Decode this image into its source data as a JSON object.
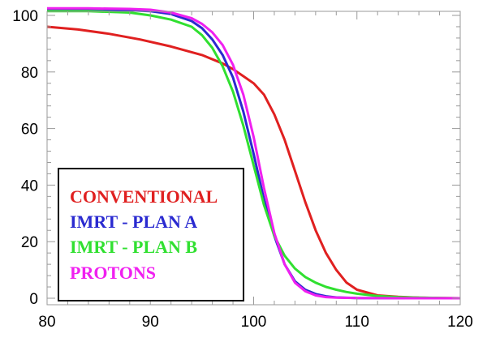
{
  "chart_data": {
    "type": "line",
    "title": "",
    "xlabel": "",
    "ylabel": "",
    "xlim": [
      80,
      120
    ],
    "ylim": [
      0,
      102
    ],
    "grid": false,
    "legend_position": "bottom-left",
    "xticks": [
      "80",
      "90",
      "100",
      "110",
      "120"
    ],
    "yticks": [
      "0",
      "20",
      "40",
      "60",
      "80",
      "100"
    ],
    "series": [
      {
        "name": "CONVENTIONAL",
        "color": "#e02020",
        "x": [
          80,
          83,
          86,
          89,
          92,
          95,
          97,
          98,
          99,
          100,
          101,
          102,
          103,
          104,
          105,
          106,
          107,
          108,
          109,
          110,
          112,
          114,
          116,
          118,
          120
        ],
        "y": [
          96,
          95,
          93.5,
          91.5,
          89,
          86,
          83,
          81,
          78.5,
          76,
          72,
          65,
          56,
          45,
          34,
          24,
          16,
          10,
          5.5,
          3,
          1,
          0.5,
          0.2,
          0.1,
          0
        ]
      },
      {
        "name": "IMRT - PLAN A",
        "color": "#2a2ad0",
        "x": [
          80,
          84,
          88,
          90,
          92,
          94,
          95,
          96,
          97,
          98,
          99,
          100,
          101,
          102,
          103,
          104,
          105,
          106,
          107,
          108,
          110,
          115,
          120
        ],
        "y": [
          102,
          102,
          101.8,
          101.5,
          100.5,
          98,
          95.5,
          91.5,
          86,
          78,
          66,
          51,
          35,
          22,
          12,
          6,
          3,
          1.5,
          0.7,
          0.3,
          0.1,
          0,
          0
        ]
      },
      {
        "name": "IMRT - PLAN B",
        "color": "#30e030",
        "x": [
          80,
          84,
          88,
          90,
          92,
          94,
          95,
          96,
          97,
          98,
          99,
          100,
          101,
          102,
          103,
          104,
          105,
          106,
          107,
          108,
          109,
          110,
          112,
          114,
          116,
          120
        ],
        "y": [
          101.5,
          101.5,
          101,
          100,
          98.5,
          96,
          93,
          88.5,
          82,
          73,
          61,
          47,
          33,
          22,
          15,
          10.5,
          7.5,
          5.5,
          4,
          3,
          2.2,
          1.6,
          0.8,
          0.4,
          0.2,
          0
        ]
      },
      {
        "name": "PROTONS",
        "color": "#f020f0",
        "x": [
          80,
          84,
          88,
          90,
          92,
          94,
          95,
          96,
          97,
          98,
          99,
          100,
          101,
          102,
          103,
          104,
          105,
          106,
          107,
          108,
          110,
          115,
          120
        ],
        "y": [
          102.5,
          102.5,
          102.3,
          102,
          101,
          99,
          97,
          94,
          89.5,
          82.5,
          72,
          57,
          39,
          23,
          12,
          5.5,
          2.5,
          1,
          0.4,
          0.2,
          0.1,
          0,
          0
        ]
      }
    ]
  }
}
